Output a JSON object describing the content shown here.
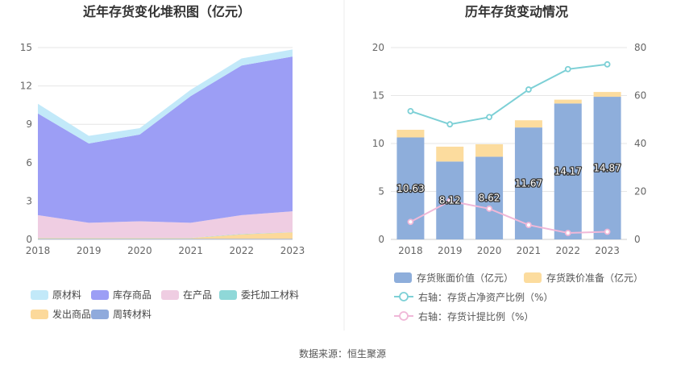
{
  "source": "数据来源：恒生聚源",
  "chart_data": [
    {
      "type": "area",
      "stacked": true,
      "title": "近年存货变化堆积图（亿元）",
      "x": [
        "2018",
        "2019",
        "2020",
        "2021",
        "2022",
        "2023"
      ],
      "ylim": [
        0,
        15
      ],
      "yticks": [
        "0",
        "3",
        "6",
        "9",
        "12",
        "15"
      ],
      "grid": true,
      "legend_position": "bottom",
      "series": [
        {
          "name": "周转材料",
          "color": "#8faadc",
          "values": [
            0.05,
            0.05,
            0.05,
            0.05,
            0.05,
            0.05
          ]
        },
        {
          "name": "发出商品",
          "color": "#fcd99a",
          "values": [
            0.05,
            0.05,
            0.05,
            0.05,
            0.35,
            0.5
          ]
        },
        {
          "name": "委托加工材料",
          "color": "#8fd8d8",
          "values": [
            0.02,
            0.02,
            0.02,
            0.02,
            0.02,
            0.02
          ]
        },
        {
          "name": "在产品",
          "color": "#efcde2",
          "values": [
            1.78,
            1.18,
            1.3,
            1.18,
            1.48,
            1.63
          ]
        },
        {
          "name": "库存商品",
          "color": "#9c9ef5",
          "values": [
            7.95,
            6.2,
            6.78,
            9.9,
            11.7,
            12.1
          ]
        },
        {
          "name": "原材料",
          "color": "#c2e9f9",
          "values": [
            0.75,
            0.6,
            0.5,
            0.5,
            0.55,
            0.55
          ]
        }
      ]
    },
    {
      "type": "bar+line",
      "title": "历年存货变动情况",
      "categories": [
        "2018",
        "2019",
        "2020",
        "2021",
        "2022",
        "2023"
      ],
      "ylim": [
        0,
        20
      ],
      "yticks": [
        "0",
        "5",
        "10",
        "15",
        "20"
      ],
      "y2lim": [
        0,
        80
      ],
      "y2ticks": [
        "0",
        "20",
        "40",
        "60",
        "80"
      ],
      "grid": true,
      "legend_position": "bottom",
      "series": [
        {
          "name": "存货账面价值（亿元）",
          "kind": "bar",
          "color": "#8eaedb",
          "values": [
            10.63,
            8.12,
            8.62,
            11.67,
            14.17,
            14.87
          ],
          "labels": [
            "10.63",
            "8.12",
            "8.62",
            "11.67",
            "14.17",
            "14.87"
          ]
        },
        {
          "name": "存货跌价准备（亿元）",
          "kind": "bar",
          "color": "#fcdc9e",
          "values": [
            0.8,
            1.55,
            1.3,
            0.75,
            0.4,
            0.5
          ]
        },
        {
          "name": "右轴：存货占净资产比例（%）",
          "kind": "line",
          "axis": "right",
          "color": "#7dd0d6",
          "values": [
            53.5,
            48.0,
            51.0,
            62.5,
            71.0,
            73.0
          ]
        },
        {
          "name": "右轴：存货计提比例（%）",
          "kind": "line",
          "axis": "right",
          "color": "#f0b8d8",
          "values": [
            7.3,
            16.0,
            12.8,
            6.0,
            2.7,
            3.2
          ]
        }
      ]
    }
  ]
}
